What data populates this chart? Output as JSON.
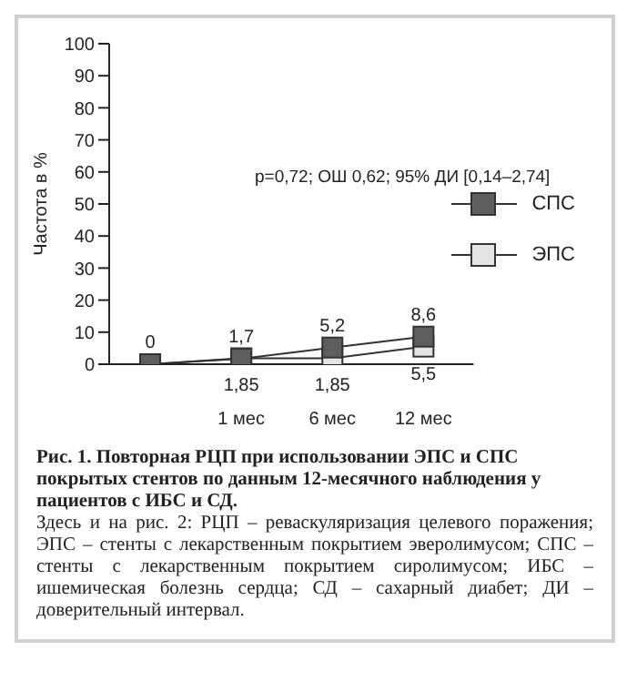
{
  "chart_data": {
    "type": "line",
    "title": "Рис. 1. Повторная РЦП при использовании ЭПС и СПС покрытых стентов по данным 12-месячного наблюдения у пациентов с ИБС и СД.",
    "ylabel": "Частота в %",
    "categories": [
      null,
      "1 мес",
      "6 мес",
      "12 мес"
    ],
    "series": [
      {
        "name": "СПС",
        "color": "#5e5e5e",
        "values": [
          0,
          1.7,
          5.2,
          8.6
        ],
        "value_labels": [
          "0",
          "1,7",
          "5,2",
          "8,6"
        ]
      },
      {
        "name": "ЭПС",
        "color": "#e4e4e4",
        "values": [
          0,
          1.85,
          1.85,
          5.5
        ],
        "value_labels": [
          null,
          "1,85",
          "1,85",
          "5,5"
        ]
      }
    ],
    "ylim": [
      0,
      100
    ],
    "yticks": [
      0,
      10,
      20,
      30,
      40,
      50,
      60,
      70,
      80,
      90,
      100
    ],
    "marker": "square",
    "legend": "right",
    "annotations": [
      "p=0,72; ОШ 0,62; 95% ДИ [0,14–2,74]",
      "Здесь и на рис. 2: РЦП – реваскуляризация целевого поражения; ЭПС – стенты с лекарственным покрытием эверолимусом; СПС – стенты с лекарственным покрытием сиролимусом; ИБС – ишемическая болезнь сердца; СД – сахарный диабет; ДИ – доверительный интервал."
    ]
  }
}
